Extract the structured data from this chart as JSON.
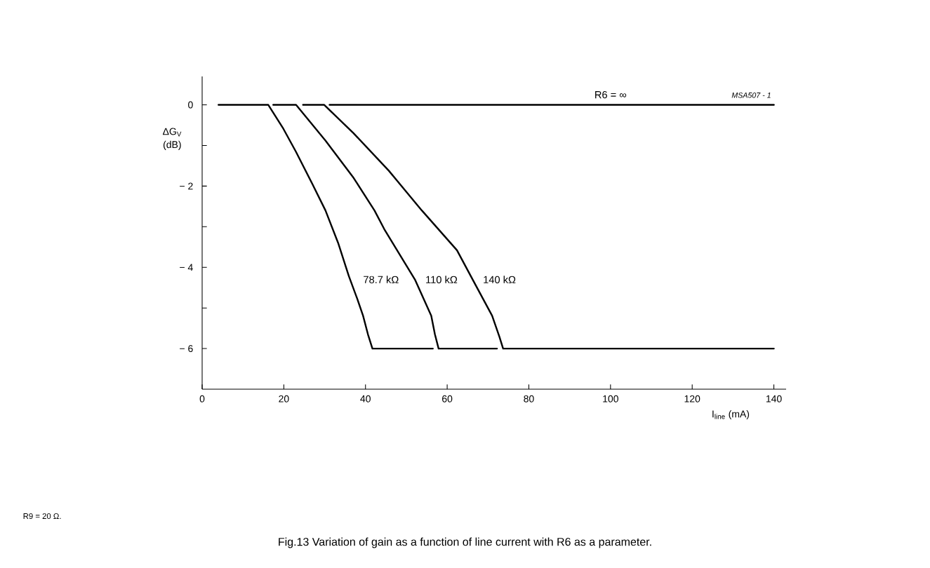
{
  "chart_data": {
    "type": "line",
    "title": "Fig.13  Variation of gain as a function of line current with R6 as a parameter.",
    "xlabel": "I$_{line}$ (mA)",
    "ylabel": "ΔG$_{V}$ (dB)",
    "xlim": [
      0,
      143
    ],
    "ylim": [
      -7,
      0.7
    ],
    "xticks": [
      0,
      20,
      40,
      60,
      80,
      100,
      120,
      140
    ],
    "yticks": [
      {
        "value": 0,
        "label": "0"
      },
      {
        "value": -1,
        "label": null
      },
      {
        "value": -2,
        "label": "− 2"
      },
      {
        "value": -3,
        "label": null
      },
      {
        "value": -4,
        "label": "− 4"
      },
      {
        "value": -5,
        "label": null
      },
      {
        "value": -6,
        "label": "− 6"
      }
    ],
    "marker": "none",
    "line_style": "solid",
    "series": [
      {
        "name": "78.7 kΩ",
        "color": "#000000",
        "x": [
          4,
          16.2,
          19.9,
          23.0,
          27.0,
          30.2,
          33.3,
          35.9,
          38.0,
          39.4,
          40.6,
          41.7,
          56.5
        ],
        "values": [
          0,
          0,
          -0.59,
          -1.16,
          -1.95,
          -2.6,
          -3.4,
          -4.21,
          -4.78,
          -5.19,
          -5.65,
          -6,
          -6
        ]
      },
      {
        "name": "110 kΩ",
        "color": "#000000",
        "x": [
          17.4,
          23.0,
          30.2,
          37.1,
          42.2,
          44.6,
          52.1,
          56.1,
          57.0,
          57.9,
          72.2
        ],
        "values": [
          0,
          0,
          -0.88,
          -1.8,
          -2.6,
          -3.06,
          -4.3,
          -5.19,
          -5.65,
          -6,
          -6
        ]
      },
      {
        "name": "140 kΩ",
        "color": "#000000",
        "x": [
          24.7,
          29.9,
          37.1,
          45.7,
          53.8,
          62.4,
          66.4,
          71.0,
          72.8,
          73.7,
          140
        ],
        "values": [
          0,
          0,
          -0.7,
          -1.62,
          -2.6,
          -3.58,
          -4.33,
          -5.19,
          -5.71,
          -6,
          -6
        ]
      },
      {
        "name": "R6 = ∞",
        "color": "#000000",
        "x": [
          31.2,
          140
        ],
        "values": [
          0,
          0
        ]
      }
    ],
    "annotations": [
      "MSA507 - 1",
      "R9 = 20 Ω."
    ]
  }
}
